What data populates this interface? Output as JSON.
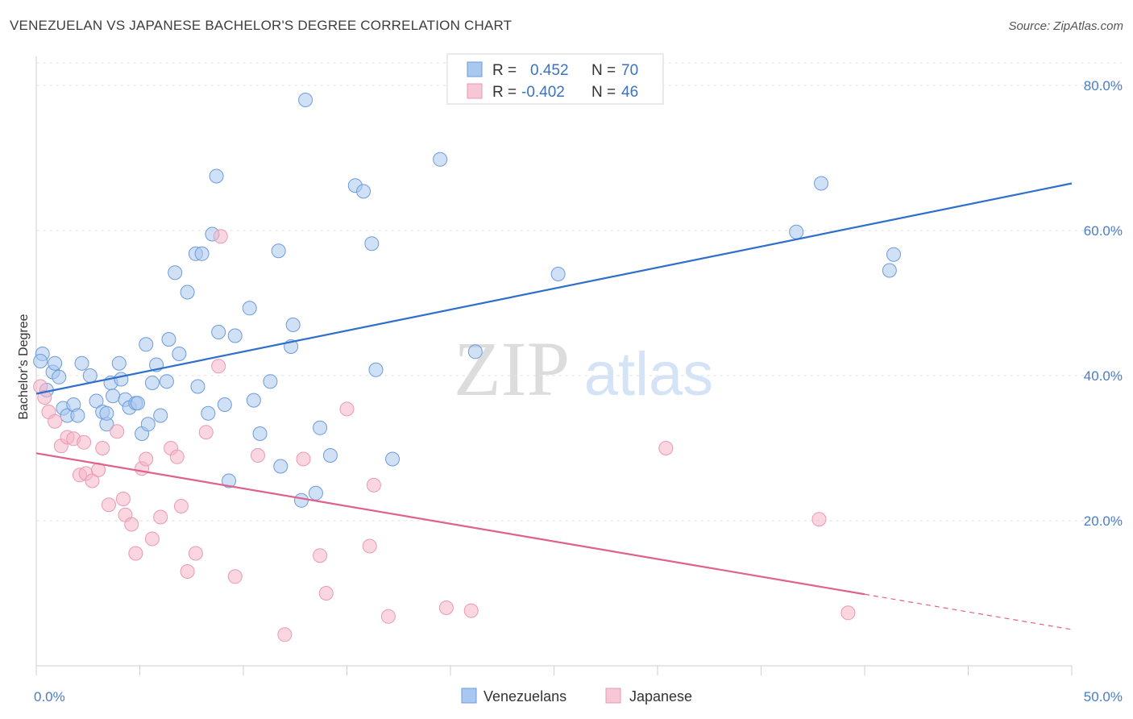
{
  "header": {
    "title": "VENEZUELAN VS JAPANESE BACHELOR'S DEGREE CORRELATION CHART",
    "source": "Source: ZipAtlas.com"
  },
  "watermark": {
    "zip": "ZIP",
    "atlas": "atlas"
  },
  "colors": {
    "venezuelan_fill": "#a9c8ef",
    "venezuelan_line": "#2f6fcc",
    "japanese_fill": "#f5b5c8",
    "japanese_line": "#e0608e"
  },
  "chart_data": {
    "type": "scatter",
    "title": "VENEZUELAN VS JAPANESE BACHELOR'S DEGREE CORRELATION CHART",
    "xlabel": "",
    "ylabel": "Bachelor's Degree",
    "xlim": [
      0,
      50
    ],
    "ylim": [
      0,
      84
    ],
    "x_tick_labels": [
      "0.0%",
      "50.0%"
    ],
    "y_tick_labels": [
      "20.0%",
      "40.0%",
      "60.0%",
      "80.0%"
    ],
    "y_ticks": [
      20,
      40,
      60,
      80
    ],
    "grid": true,
    "legend": {
      "placement": "top-center",
      "rows": [
        {
          "r_label": "R =",
          "r_value": "0.452",
          "n_label": "N =",
          "n_value": "70"
        },
        {
          "r_label": "R =",
          "r_value": "-0.402",
          "n_label": "N =",
          "n_value": "46"
        }
      ]
    },
    "bottom_legend": [
      "Venezuelans",
      "Japanese"
    ],
    "series": [
      {
        "name": "Venezuelans",
        "trend": {
          "x": [
            0,
            50
          ],
          "y": [
            37.5,
            66.5
          ],
          "solid_to": 50
        },
        "points": [
          [
            0.3,
            43.0
          ],
          [
            0.5,
            38.0
          ],
          [
            0.8,
            40.5
          ],
          [
            0.9,
            41.7
          ],
          [
            1.1,
            39.8
          ],
          [
            1.3,
            35.5
          ],
          [
            1.5,
            34.5
          ],
          [
            1.8,
            36.0
          ],
          [
            2.0,
            34.5
          ],
          [
            2.2,
            41.7
          ],
          [
            2.6,
            40.0
          ],
          [
            2.9,
            36.5
          ],
          [
            3.2,
            35.0
          ],
          [
            3.4,
            33.3
          ],
          [
            3.4,
            34.8
          ],
          [
            3.6,
            39.0
          ],
          [
            3.7,
            37.2
          ],
          [
            4.0,
            41.7
          ],
          [
            4.1,
            39.5
          ],
          [
            4.3,
            36.7
          ],
          [
            4.5,
            35.6
          ],
          [
            4.8,
            36.2
          ],
          [
            4.9,
            36.2
          ],
          [
            5.1,
            32.0
          ],
          [
            5.3,
            44.3
          ],
          [
            5.4,
            33.3
          ],
          [
            5.6,
            39.0
          ],
          [
            5.8,
            41.5
          ],
          [
            6.0,
            34.5
          ],
          [
            6.3,
            39.2
          ],
          [
            6.4,
            45.0
          ],
          [
            6.7,
            54.2
          ],
          [
            6.9,
            43.0
          ],
          [
            7.3,
            51.5
          ],
          [
            7.7,
            56.8
          ],
          [
            7.8,
            38.5
          ],
          [
            8.0,
            56.8
          ],
          [
            8.3,
            34.8
          ],
          [
            8.5,
            59.5
          ],
          [
            8.7,
            67.5
          ],
          [
            8.8,
            46.0
          ],
          [
            9.1,
            36.0
          ],
          [
            9.3,
            25.5
          ],
          [
            9.6,
            45.5
          ],
          [
            10.3,
            49.3
          ],
          [
            10.5,
            36.6
          ],
          [
            10.8,
            32.0
          ],
          [
            11.3,
            39.2
          ],
          [
            11.7,
            57.2
          ],
          [
            11.8,
            27.5
          ],
          [
            12.3,
            44.0
          ],
          [
            12.4,
            47.0
          ],
          [
            12.8,
            22.8
          ],
          [
            13.0,
            78.0
          ],
          [
            13.5,
            23.8
          ],
          [
            13.7,
            32.8
          ],
          [
            14.2,
            29.0
          ],
          [
            15.4,
            66.2
          ],
          [
            15.8,
            65.4
          ],
          [
            16.2,
            58.2
          ],
          [
            16.4,
            40.8
          ],
          [
            17.2,
            28.5
          ],
          [
            19.5,
            69.8
          ],
          [
            21.2,
            43.3
          ],
          [
            25.2,
            54.0
          ],
          [
            36.7,
            59.8
          ],
          [
            37.9,
            66.5
          ],
          [
            41.2,
            54.5
          ],
          [
            41.4,
            56.7
          ],
          [
            0.2,
            42.0
          ]
        ]
      },
      {
        "name": "Japanese",
        "trend": {
          "x": [
            0,
            50
          ],
          "y": [
            29.3,
            5.0
          ],
          "solid_to": 40
        },
        "points": [
          [
            0.2,
            38.5
          ],
          [
            0.4,
            37.0
          ],
          [
            0.6,
            35.0
          ],
          [
            0.9,
            33.7
          ],
          [
            1.2,
            30.3
          ],
          [
            1.5,
            31.5
          ],
          [
            1.8,
            31.3
          ],
          [
            2.1,
            26.3
          ],
          [
            2.3,
            30.8
          ],
          [
            2.4,
            26.5
          ],
          [
            2.7,
            25.5
          ],
          [
            3.0,
            27.0
          ],
          [
            3.2,
            30.0
          ],
          [
            3.5,
            22.2
          ],
          [
            3.9,
            32.3
          ],
          [
            4.2,
            23.0
          ],
          [
            4.3,
            20.8
          ],
          [
            4.6,
            19.5
          ],
          [
            4.8,
            15.5
          ],
          [
            5.1,
            27.2
          ],
          [
            5.3,
            28.5
          ],
          [
            5.6,
            17.5
          ],
          [
            6.0,
            20.5
          ],
          [
            6.5,
            30.0
          ],
          [
            6.8,
            28.8
          ],
          [
            7.0,
            22.0
          ],
          [
            7.3,
            13.0
          ],
          [
            7.7,
            15.5
          ],
          [
            8.2,
            32.2
          ],
          [
            8.8,
            41.3
          ],
          [
            8.9,
            59.2
          ],
          [
            9.6,
            12.3
          ],
          [
            10.7,
            29.0
          ],
          [
            12.0,
            4.3
          ],
          [
            12.9,
            28.5
          ],
          [
            13.7,
            15.2
          ],
          [
            14.0,
            10.0
          ],
          [
            15.0,
            35.4
          ],
          [
            16.1,
            16.5
          ],
          [
            16.3,
            24.9
          ],
          [
            17.0,
            6.8
          ],
          [
            19.8,
            8.0
          ],
          [
            21.0,
            7.6
          ],
          [
            30.4,
            30.0
          ],
          [
            37.8,
            20.2
          ],
          [
            39.2,
            7.3
          ]
        ]
      }
    ]
  }
}
